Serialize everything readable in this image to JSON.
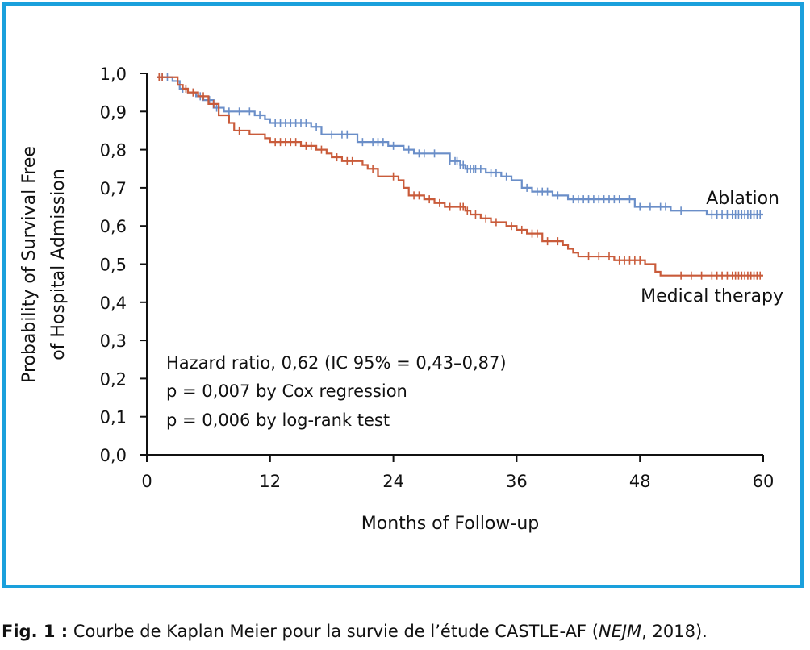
{
  "chart_data": {
    "type": "line",
    "subtype": "kaplan-meier",
    "title": "",
    "xlabel": "Months of Follow-up",
    "ylabel_lines": [
      "Probability of Survival Free",
      "of Hospital Admission"
    ],
    "xlim": [
      0,
      60
    ],
    "ylim": [
      0,
      1
    ],
    "x_ticks": [
      0,
      12,
      24,
      36,
      48,
      60
    ],
    "y_tick_values": [
      0,
      0.1,
      0.2,
      0.3,
      0.4,
      0.5,
      0.6,
      0.7,
      0.8,
      0.9,
      1.0
    ],
    "y_tick_labels": [
      "0,0",
      "0,1",
      "0,2",
      "0,3",
      "0,4",
      "0,5",
      "0,6",
      "0,7",
      "0,8",
      "0,9",
      "1,0"
    ],
    "grid": false,
    "series": [
      {
        "name": "Ablation",
        "color": "#6a8ec8",
        "steps": [
          [
            1,
            0.99
          ],
          [
            2.5,
            0.98
          ],
          [
            3.2,
            0.96
          ],
          [
            4,
            0.95
          ],
          [
            4.8,
            0.94
          ],
          [
            5.5,
            0.93
          ],
          [
            6.5,
            0.91
          ],
          [
            7.5,
            0.9
          ],
          [
            10.5,
            0.89
          ],
          [
            11.5,
            0.88
          ],
          [
            12,
            0.87
          ],
          [
            16,
            0.86
          ],
          [
            17,
            0.84
          ],
          [
            20.5,
            0.82
          ],
          [
            23.5,
            0.81
          ],
          [
            25,
            0.8
          ],
          [
            26,
            0.79
          ],
          [
            29.5,
            0.77
          ],
          [
            30.5,
            0.76
          ],
          [
            31,
            0.75
          ],
          [
            33,
            0.74
          ],
          [
            34.5,
            0.73
          ],
          [
            35.5,
            0.72
          ],
          [
            36.5,
            0.7
          ],
          [
            37.5,
            0.69
          ],
          [
            39.5,
            0.68
          ],
          [
            41,
            0.67
          ],
          [
            47.5,
            0.65
          ],
          [
            51,
            0.64
          ],
          [
            54.5,
            0.63
          ],
          [
            60,
            0.63
          ]
        ],
        "censors": [
          1.2,
          1.5,
          2,
          3.5,
          4.5,
          5.2,
          6.1,
          6.8,
          8,
          9,
          10,
          11,
          12.5,
          13,
          13.5,
          14,
          14.5,
          15,
          15.5,
          16.5,
          18,
          19,
          19.5,
          21,
          22,
          22.5,
          23,
          24,
          25.5,
          26.5,
          27,
          28,
          29.5,
          30,
          30.2,
          30.5,
          30.8,
          31.2,
          31.5,
          31.8,
          32,
          32.5,
          33.5,
          34,
          35,
          37,
          38,
          38.5,
          39,
          40,
          41.5,
          42,
          42.5,
          43,
          43.5,
          44,
          44.5,
          45,
          45.5,
          46,
          47,
          48,
          49,
          50,
          50.5,
          52,
          55,
          55.5,
          56,
          56.5,
          57,
          57.3,
          57.6,
          57.9,
          58.2,
          58.5,
          58.8,
          59.1,
          59.4,
          59.7
        ]
      },
      {
        "name": "Medical therapy",
        "color": "#c95b3a",
        "steps": [
          [
            1,
            0.99
          ],
          [
            2,
            0.99
          ],
          [
            3,
            0.97
          ],
          [
            3.5,
            0.96
          ],
          [
            4,
            0.95
          ],
          [
            5,
            0.94
          ],
          [
            6,
            0.92
          ],
          [
            7,
            0.89
          ],
          [
            8,
            0.87
          ],
          [
            8.5,
            0.85
          ],
          [
            10,
            0.84
          ],
          [
            11.5,
            0.83
          ],
          [
            12,
            0.82
          ],
          [
            15,
            0.81
          ],
          [
            16.5,
            0.8
          ],
          [
            17.5,
            0.79
          ],
          [
            18,
            0.78
          ],
          [
            19,
            0.77
          ],
          [
            21,
            0.76
          ],
          [
            21.5,
            0.75
          ],
          [
            22.5,
            0.73
          ],
          [
            24.5,
            0.72
          ],
          [
            25,
            0.7
          ],
          [
            25.5,
            0.68
          ],
          [
            27,
            0.67
          ],
          [
            28,
            0.66
          ],
          [
            29,
            0.65
          ],
          [
            31,
            0.64
          ],
          [
            31.5,
            0.63
          ],
          [
            32.5,
            0.62
          ],
          [
            33.5,
            0.61
          ],
          [
            35,
            0.6
          ],
          [
            36,
            0.59
          ],
          [
            37,
            0.58
          ],
          [
            38.5,
            0.56
          ],
          [
            40.5,
            0.55
          ],
          [
            41,
            0.54
          ],
          [
            41.5,
            0.53
          ],
          [
            42,
            0.52
          ],
          [
            45.5,
            0.51
          ],
          [
            48.5,
            0.5
          ],
          [
            49.5,
            0.48
          ],
          [
            50,
            0.47
          ],
          [
            60,
            0.47
          ]
        ],
        "censors": [
          1.2,
          1.5,
          3.8,
          4.5,
          5.5,
          6.5,
          9,
          12.5,
          13,
          13.5,
          14,
          14.5,
          15.5,
          16,
          17,
          18.5,
          19.5,
          20,
          22,
          24,
          26,
          26.5,
          27.5,
          28.5,
          29.5,
          30.5,
          30.8,
          31.2,
          32,
          33,
          34,
          35.5,
          36.5,
          37.5,
          38,
          39,
          40,
          43,
          44,
          45,
          46,
          46.5,
          47,
          47.5,
          48,
          52,
          53,
          54,
          55,
          55.5,
          56,
          56.5,
          57,
          57.3,
          57.6,
          57.9,
          58.2,
          58.5,
          58.8,
          59.1,
          59.4,
          59.7
        ]
      }
    ],
    "annotations": [
      "Hazard ratio, 0,62 (IC 95% = 0,43–0,87)",
      "p = 0,007 by Cox regression",
      "p = 0,006 by log-rank test"
    ]
  },
  "caption": {
    "label": "Fig. 1 :",
    "text_before": " Courbe de Kaplan Meier pour la survie de l’étude CASTLE-AF (",
    "journal": "NEJM",
    "text_after": ", 2018)."
  }
}
